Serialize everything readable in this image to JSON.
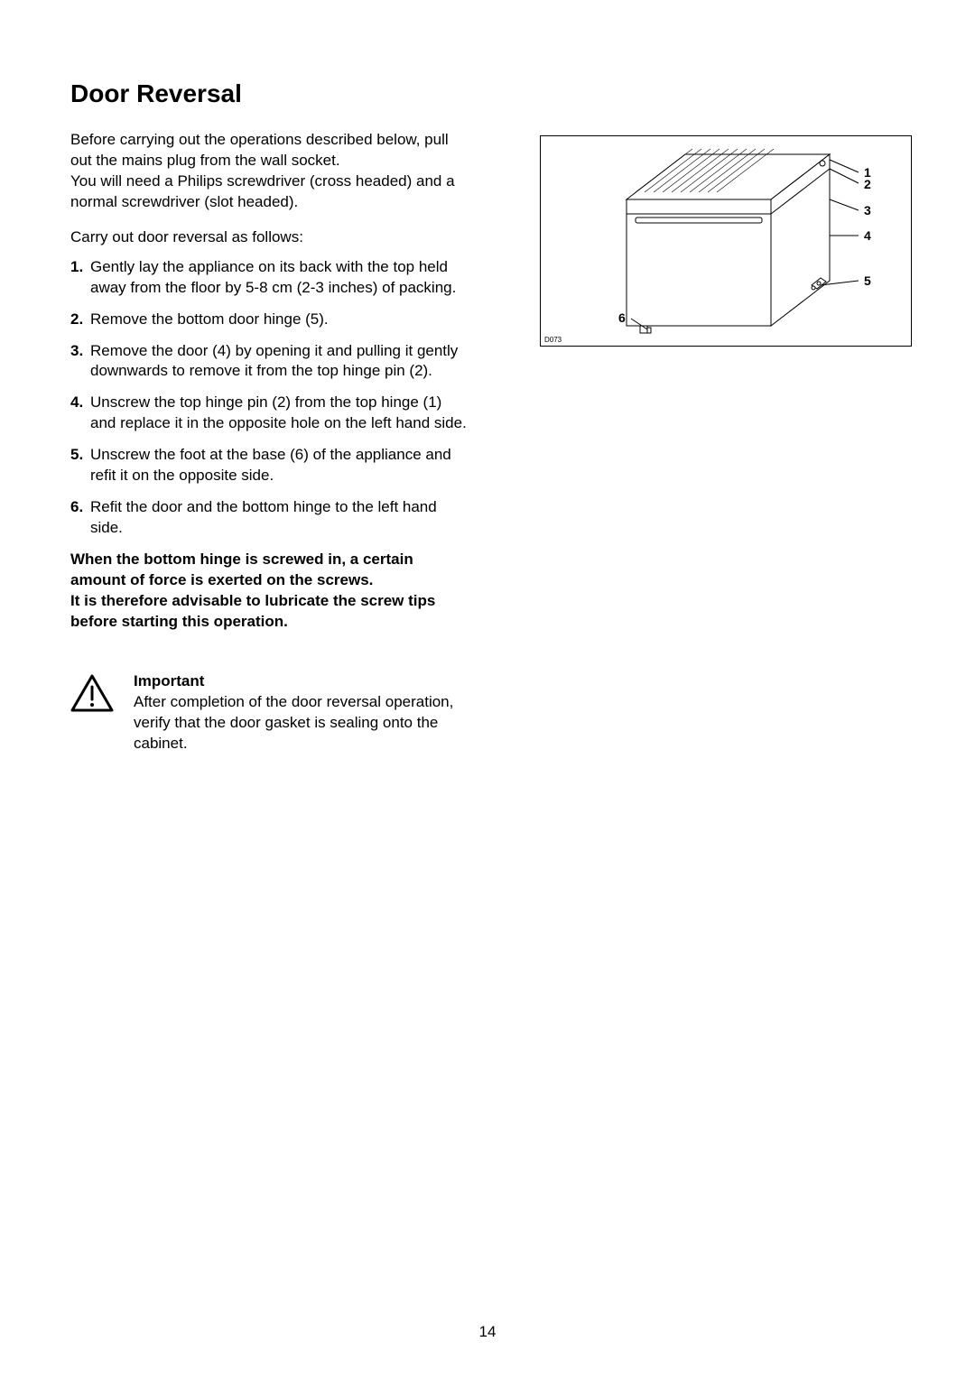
{
  "title": "Door Reversal",
  "intro": "Before carrying out the operations described below, pull out the mains plug from the wall socket.\nYou will need a Philips screwdriver (cross headed) and a normal screwdriver (slot headed).",
  "lead": "Carry out door reversal as follows:",
  "steps": [
    {
      "num": "1.",
      "text": "Gently lay the appliance on its back with the top held away from the floor by 5-8 cm (2-3 inches) of packing."
    },
    {
      "num": "2.",
      "text": "Remove the bottom door hinge (5)."
    },
    {
      "num": "3.",
      "text": "Remove the door (4) by opening it and pulling it gently downwards to remove it from the top hinge pin (2)."
    },
    {
      "num": "4.",
      "text": "Unscrew the top hinge pin (2) from the top hinge (1) and replace it in the opposite hole on the left hand side."
    },
    {
      "num": "5.",
      "text": "Unscrew the foot at the base (6) of the appliance and refit it on the opposite side."
    },
    {
      "num": "6.",
      "text": "Refit the door and the bottom hinge to the left hand side."
    }
  ],
  "bold_note": "When the bottom hinge is screwed in, a certain amount of force is exerted on the screws.\nIt is therefore advisable to lubricate the screw tips before starting this operation.",
  "important": {
    "title": "Important",
    "body": "After completion of the door reversal operation, verify that the door gasket is sealing onto the cabinet."
  },
  "diagram": {
    "ref": "D073",
    "labels": [
      "1",
      "2",
      "3",
      "4",
      "5",
      "6"
    ],
    "label_font_weight": "bold",
    "label_font_size": 14,
    "leader_stroke": "#000000",
    "box_border_color": "#000000",
    "appliance_fill": "#ffffff",
    "appliance_stroke": "#000000"
  },
  "page_number": "14",
  "colors": {
    "text": "#000000",
    "background": "#ffffff"
  }
}
